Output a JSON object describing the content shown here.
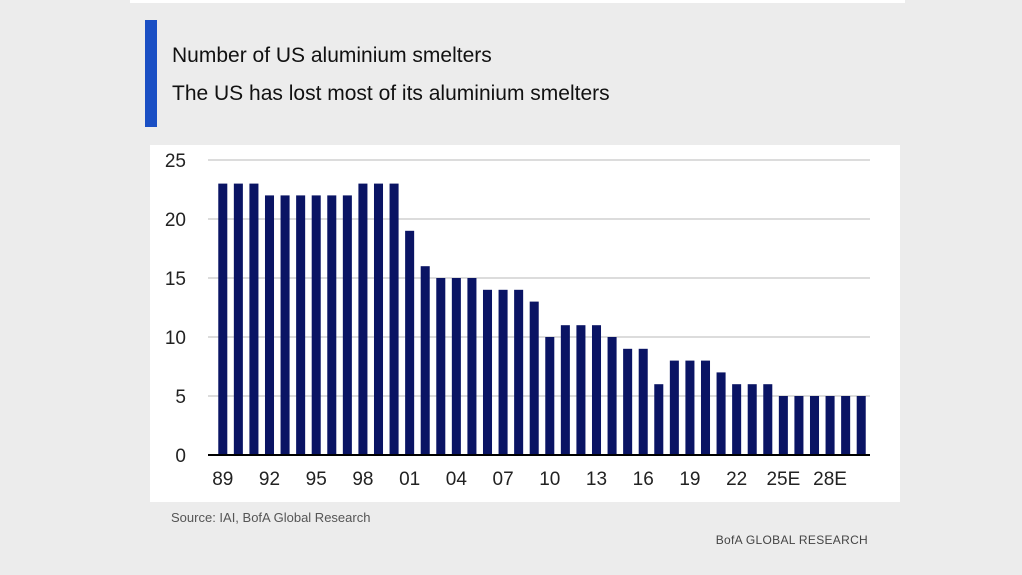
{
  "title": "Number of US aluminium smelters",
  "subtitle": "The US has lost most of its aluminium smelters",
  "source": "Source:  IAI, BofA Global Research",
  "brand": "BofA GLOBAL RESEARCH",
  "colors": {
    "bar": "#0a1464",
    "accent": "#1a4fc4",
    "grid": "#c8c8c8"
  },
  "chart_data": {
    "type": "bar",
    "title": "Number of US aluminium smelters",
    "xlabel": "",
    "ylabel": "",
    "ylim": [
      0,
      25
    ],
    "yticks": [
      0,
      5,
      10,
      15,
      20,
      25
    ],
    "grid": true,
    "categories": [
      "89",
      "90",
      "91",
      "92",
      "93",
      "94",
      "95",
      "96",
      "97",
      "98",
      "99",
      "00",
      "01",
      "02",
      "03",
      "04",
      "05",
      "06",
      "07",
      "08",
      "09",
      "10",
      "11",
      "12",
      "13",
      "14",
      "15",
      "16",
      "17",
      "18",
      "19",
      "20",
      "21",
      "22",
      "23",
      "24",
      "25E",
      "26E",
      "27E",
      "28E",
      "29E",
      "30E"
    ],
    "xtick_labels": [
      "89",
      "92",
      "95",
      "98",
      "01",
      "04",
      "07",
      "10",
      "13",
      "16",
      "19",
      "22",
      "25E",
      "28E"
    ],
    "values": [
      23,
      23,
      23,
      22,
      22,
      22,
      22,
      22,
      22,
      23,
      23,
      23,
      19,
      16,
      15,
      15,
      15,
      14,
      14,
      14,
      13,
      10,
      11,
      11,
      11,
      10,
      9,
      9,
      6,
      8,
      8,
      8,
      7,
      6,
      6,
      6,
      5,
      5,
      5,
      5,
      5,
      5
    ]
  }
}
